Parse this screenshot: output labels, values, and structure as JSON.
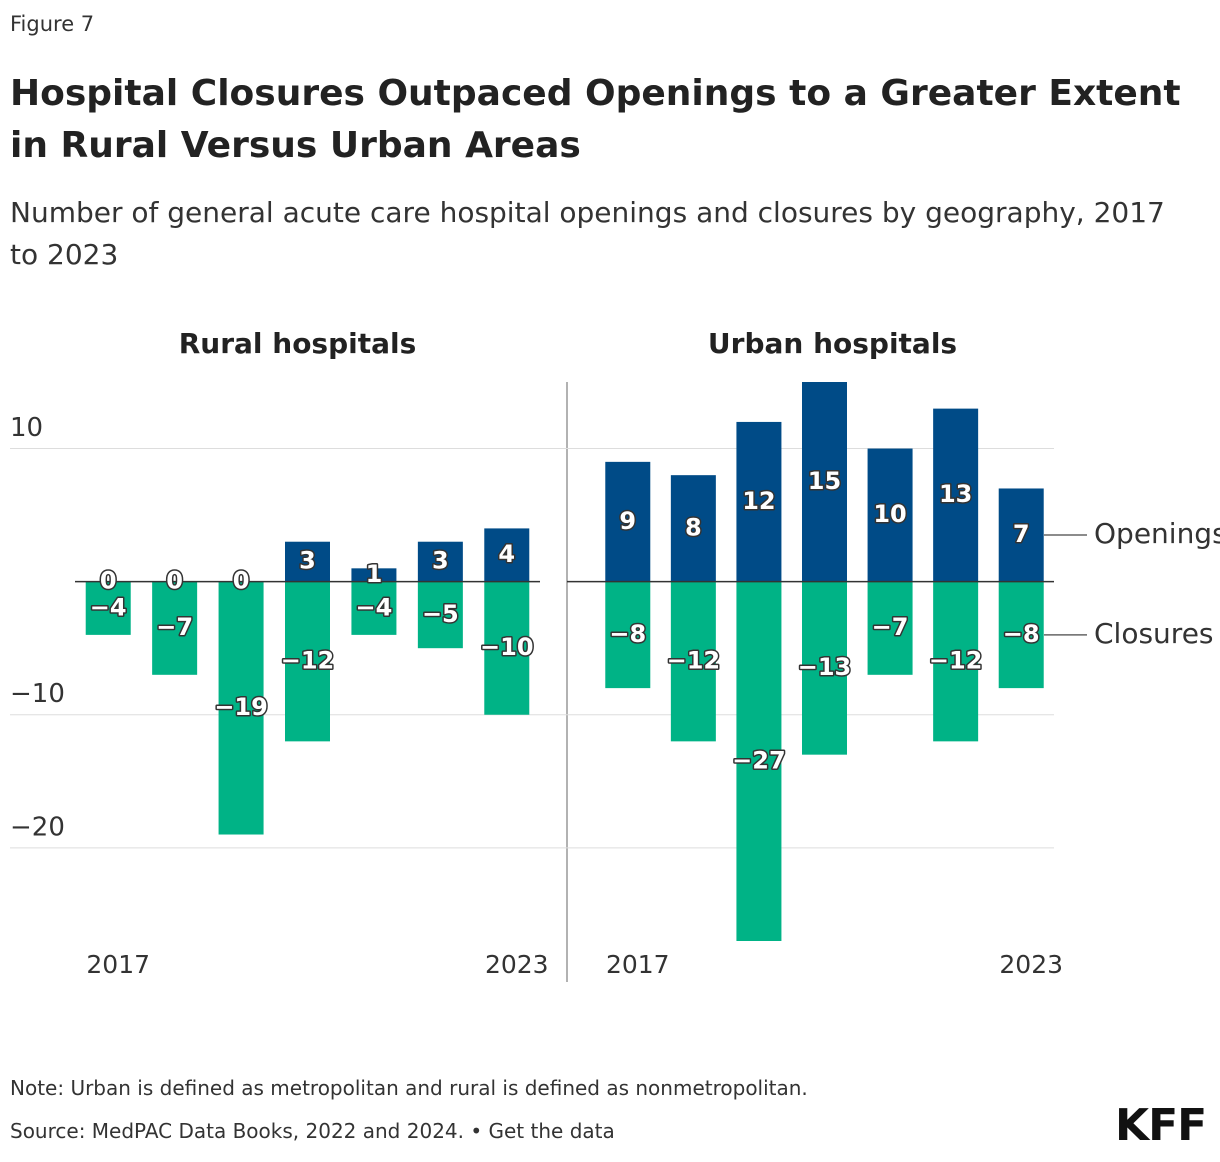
{
  "header": {
    "figure": "Figure 7",
    "title": "Hospital Closures Outpaced Openings to a Greater Extent in Rural Versus Urban Areas",
    "subtitle": "Number of general acute care hospital openings and closures by geography, 2017 to 2023"
  },
  "chart_data": [
    {
      "type": "bar",
      "title": "Rural hospitals",
      "categories": [
        "2017",
        null,
        null,
        null,
        null,
        null,
        "2023"
      ],
      "ylim": [
        -27,
        15
      ],
      "yticks": [
        {
          "value": 10,
          "label": "10"
        },
        {
          "value": -10,
          "label": "−10"
        },
        {
          "value": -20,
          "label": "−20"
        }
      ],
      "grid": true,
      "series": [
        {
          "color": "#004b87",
          "values": [
            0,
            0,
            0,
            3,
            1,
            3,
            4
          ]
        },
        {
          "color": "#00b386",
          "values": [
            -4,
            -7,
            -19,
            -12,
            -4,
            -5,
            -10
          ],
          "value_labels": [
            "−4",
            "−7",
            "−19",
            "−12",
            "−4",
            "−5",
            "−10"
          ]
        }
      ]
    },
    {
      "type": "bar",
      "title": "Urban hospitals",
      "categories": [
        "2017",
        null,
        null,
        null,
        null,
        null,
        "2023"
      ],
      "ylim": [
        -27,
        15
      ],
      "legend": "right",
      "series": [
        {
          "name": "Openings",
          "color": "#004b87",
          "values": [
            9,
            8,
            12,
            15,
            10,
            13,
            7
          ]
        },
        {
          "name": "Closures",
          "color": "#00b386",
          "values": [
            -8,
            -12,
            -27,
            -13,
            -7,
            -12,
            -8
          ],
          "value_labels": [
            "−8",
            "−12",
            "−27",
            "−13",
            "−7",
            "−12",
            "−8"
          ]
        }
      ]
    }
  ],
  "footer": {
    "note": "Note: Urban is defined as metropolitan and rural is defined as nonmetropolitan.",
    "source": "Source: MedPAC Data Books, 2022 and 2024. • Get the data",
    "logo": "KFF"
  }
}
